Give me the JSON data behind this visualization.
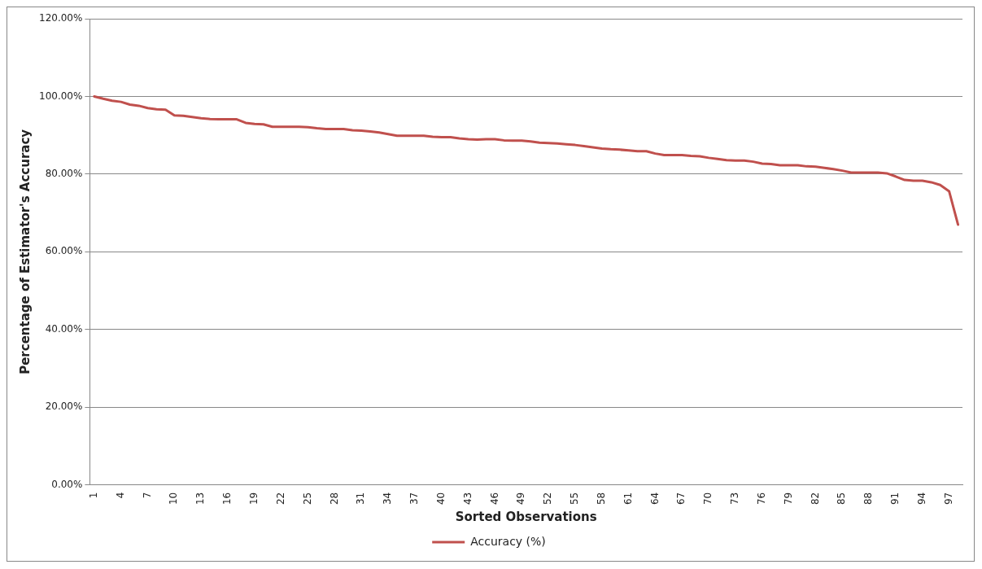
{
  "chart_data": {
    "type": "line",
    "xlabel": "Sorted Observations",
    "ylabel": "Percentage of Estimator's Accuracy",
    "categories": [
      "1",
      null,
      null,
      "4",
      null,
      null,
      "7",
      null,
      null,
      "10",
      null,
      null,
      "13",
      null,
      null,
      "16",
      null,
      null,
      "19",
      null,
      null,
      "22",
      null,
      null,
      "25",
      null,
      null,
      "28",
      null,
      null,
      "31",
      null,
      null,
      "34",
      null,
      null,
      "37",
      null,
      null,
      "40",
      null,
      null,
      "43",
      null,
      null,
      "46",
      null,
      null,
      "49",
      null,
      null,
      "52",
      null,
      null,
      "55",
      null,
      null,
      "58",
      null,
      null,
      "61",
      null,
      null,
      "64",
      null,
      null,
      "67",
      null,
      null,
      "70",
      null,
      null,
      "73",
      null,
      null,
      "76",
      null,
      null,
      "79",
      null,
      null,
      "82",
      null,
      null,
      "85",
      null,
      null,
      "88",
      null,
      null,
      "91",
      null,
      null,
      "94",
      null,
      null,
      "97",
      null
    ],
    "series": [
      {
        "name": "Accuracy (%)",
        "color": "#c0504d",
        "values": [
          100,
          99.4,
          98.9,
          98.6,
          97.9,
          97.6,
          97.0,
          96.7,
          96.6,
          95.1,
          95.0,
          94.7,
          94.4,
          94.2,
          94.1,
          94.1,
          94.1,
          93.2,
          92.9,
          92.8,
          92.2,
          92.2,
          92.2,
          92.2,
          92.1,
          91.8,
          91.6,
          91.6,
          91.6,
          91.3,
          91.2,
          91.0,
          90.7,
          90.3,
          89.9,
          89.9,
          89.9,
          89.9,
          89.6,
          89.5,
          89.5,
          89.2,
          89.0,
          88.9,
          89.0,
          89.0,
          88.7,
          88.6,
          88.6,
          88.4,
          88.1,
          88.0,
          87.9,
          87.7,
          87.5,
          87.2,
          86.9,
          86.6,
          86.4,
          86.3,
          86.1,
          85.9,
          85.9,
          85.3,
          84.9,
          84.9,
          84.9,
          84.7,
          84.6,
          84.2,
          83.9,
          83.6,
          83.5,
          83.5,
          83.2,
          82.7,
          82.6,
          82.3,
          82.3,
          82.3,
          82.0,
          81.9,
          81.6,
          81.3,
          80.9,
          80.4,
          80.4,
          80.4,
          80.4,
          80.2,
          79.4,
          78.5,
          78.3,
          78.3,
          77.9,
          77.2,
          75.6,
          67.0
        ]
      }
    ],
    "ylim": [
      0,
      120
    ],
    "yticks": [
      {
        "value": 0,
        "label": "0.00%"
      },
      {
        "value": 20,
        "label": "20.00%"
      },
      {
        "value": 40,
        "label": "40.00%"
      },
      {
        "value": 60,
        "label": "60.00%"
      },
      {
        "value": 80,
        "label": "80.00%"
      },
      {
        "value": 100,
        "label": "100.00%"
      },
      {
        "value": 120,
        "label": "120.00%"
      }
    ],
    "grid": "y",
    "legend": "bottom",
    "marker": "none",
    "line_style": "solid"
  }
}
